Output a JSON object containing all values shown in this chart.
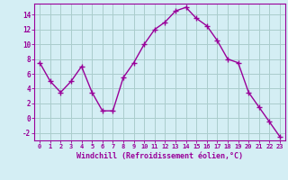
{
  "x": [
    0,
    1,
    2,
    3,
    4,
    5,
    6,
    7,
    8,
    9,
    10,
    11,
    12,
    13,
    14,
    15,
    16,
    17,
    18,
    19,
    20,
    21,
    22,
    23
  ],
  "y": [
    7.5,
    5.0,
    3.5,
    5.0,
    7.0,
    3.5,
    1.0,
    1.0,
    5.5,
    7.5,
    10.0,
    12.0,
    13.0,
    14.5,
    15.0,
    13.5,
    12.5,
    10.5,
    8.0,
    7.5,
    3.5,
    1.5,
    -0.5,
    -2.5
  ],
  "line_color": "#990099",
  "marker": "+",
  "marker_size": 4,
  "bg_color": "#d4eef4",
  "grid_color": "#aacccc",
  "xlabel": "Windchill (Refroidissement éolien,°C)",
  "xlabel_color": "#990099",
  "tick_color": "#990099",
  "ylim": [
    -3,
    15.5
  ],
  "yticks": [
    -2,
    0,
    2,
    4,
    6,
    8,
    10,
    12,
    14
  ],
  "xlim": [
    -0.5,
    23.5
  ],
  "xticks": [
    0,
    1,
    2,
    3,
    4,
    5,
    6,
    7,
    8,
    9,
    10,
    11,
    12,
    13,
    14,
    15,
    16,
    17,
    18,
    19,
    20,
    21,
    22,
    23
  ],
  "xtick_labels": [
    "0",
    "1",
    "2",
    "3",
    "4",
    "5",
    "6",
    "7",
    "8",
    "9",
    "10",
    "11",
    "12",
    "13",
    "14",
    "15",
    "16",
    "17",
    "18",
    "19",
    "20",
    "21",
    "22",
    "23"
  ],
  "line_width": 1.0,
  "fig_width": 3.2,
  "fig_height": 2.0,
  "dpi": 100
}
